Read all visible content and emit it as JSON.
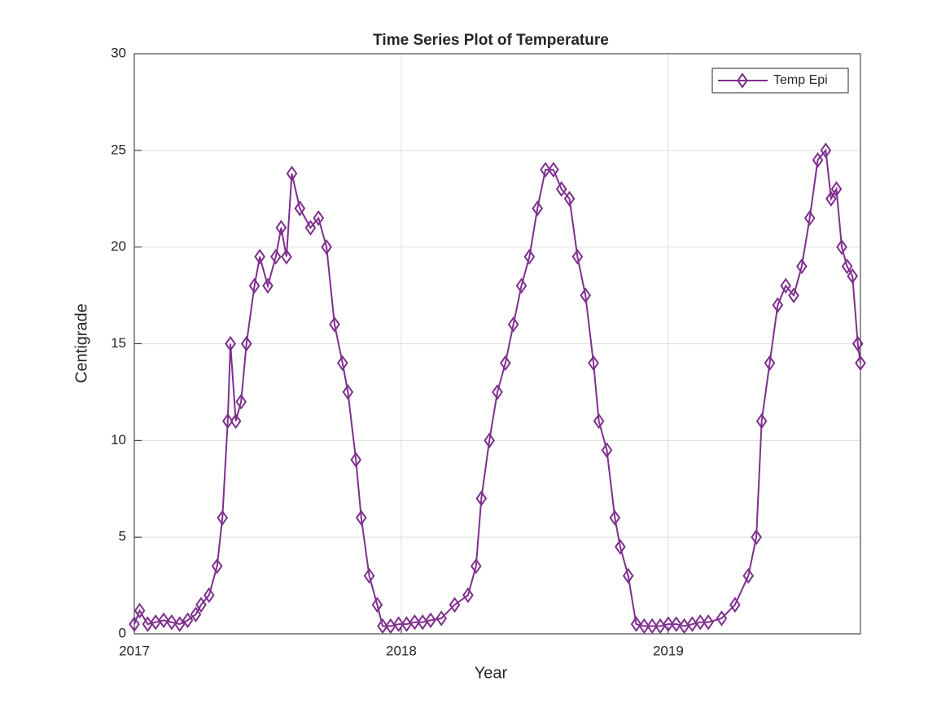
{
  "chart_data": {
    "type": "line",
    "title": "Time Series Plot of Temperature",
    "x_label": "Year",
    "y_label": "Centigrade",
    "xlim": [
      2017,
      2019.72
    ],
    "xticks": [
      2017,
      2018,
      2019
    ],
    "ylim": [
      0,
      30
    ],
    "yticks": [
      0,
      5,
      10,
      15,
      20,
      25,
      30
    ],
    "grid": true,
    "legend": "top-right",
    "x": [
      2017.0,
      2017.02,
      2017.05,
      2017.08,
      2017.11,
      2017.14,
      2017.17,
      2017.2,
      2017.23,
      2017.25,
      2017.28,
      2017.31,
      2017.33,
      2017.35,
      2017.36,
      2017.38,
      2017.4,
      2017.42,
      2017.45,
      2017.47,
      2017.5,
      2017.53,
      2017.55,
      2017.57,
      2017.59,
      2017.62,
      2017.66,
      2017.69,
      2017.72,
      2017.75,
      2017.78,
      2017.8,
      2017.83,
      2017.85,
      2017.88,
      2017.91,
      2017.93,
      2017.96,
      2017.99,
      2018.02,
      2018.05,
      2018.08,
      2018.11,
      2018.15,
      2018.2,
      2018.25,
      2018.28,
      2018.3,
      2018.33,
      2018.36,
      2018.39,
      2018.42,
      2018.45,
      2018.48,
      2018.51,
      2018.54,
      2018.57,
      2018.6,
      2018.63,
      2018.66,
      2018.69,
      2018.72,
      2018.74,
      2018.77,
      2018.8,
      2018.82,
      2018.85,
      2018.88,
      2018.91,
      2018.94,
      2018.97,
      2019.0,
      2019.03,
      2019.06,
      2019.09,
      2019.12,
      2019.15,
      2019.2,
      2019.25,
      2019.3,
      2019.33,
      2019.35,
      2019.38,
      2019.41,
      2019.44,
      2019.47,
      2019.5,
      2019.53,
      2019.56,
      2019.59,
      2019.61,
      2019.63,
      2019.65,
      2019.67,
      2019.69,
      2019.71,
      2019.72
    ],
    "series": [
      {
        "name": "Temp Epi",
        "color": "#7e2f8e",
        "values": [
          0.5,
          1.2,
          0.5,
          0.6,
          0.7,
          0.6,
          0.5,
          0.7,
          1.0,
          1.5,
          2.0,
          3.5,
          6.0,
          11.0,
          15.0,
          11.0,
          12.0,
          15.0,
          18.0,
          19.5,
          18.0,
          19.5,
          21.0,
          19.5,
          23.8,
          22.0,
          21.0,
          21.5,
          20.0,
          16.0,
          14.0,
          12.5,
          9.0,
          6.0,
          3.0,
          1.5,
          0.4,
          0.4,
          0.5,
          0.5,
          0.6,
          0.6,
          0.7,
          0.8,
          1.5,
          2.0,
          3.5,
          7.0,
          10.0,
          12.5,
          14.0,
          16.0,
          18.0,
          19.5,
          22.0,
          24.0,
          24.0,
          23.0,
          22.5,
          19.5,
          17.5,
          14.0,
          11.0,
          9.5,
          6.0,
          4.5,
          3.0,
          0.5,
          0.4,
          0.4,
          0.4,
          0.5,
          0.5,
          0.4,
          0.5,
          0.6,
          0.6,
          0.8,
          1.5,
          3.0,
          5.0,
          11.0,
          14.0,
          17.0,
          18.0,
          17.5,
          19.0,
          21.5,
          24.5,
          25.0,
          22.5,
          23.0,
          20.0,
          19.0,
          18.5,
          15.0,
          14.0
        ]
      }
    ]
  }
}
